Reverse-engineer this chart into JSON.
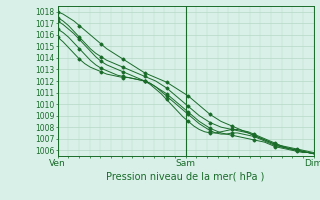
{
  "title": "",
  "xlabel": "Pression niveau de la mer( hPa )",
  "ylabel": "",
  "bg_color": "#d8f0e8",
  "grid_color": "#b8d8c8",
  "line_color": "#1a6b2a",
  "xlim": [
    0,
    48
  ],
  "ylim": [
    1005.5,
    1018.5
  ],
  "yticks": [
    1006,
    1007,
    1008,
    1009,
    1010,
    1011,
    1012,
    1013,
    1014,
    1015,
    1016,
    1017,
    1018
  ],
  "xtick_positions": [
    0,
    24,
    48
  ],
  "xtick_labels": [
    "Ven",
    "Sam",
    "Dim"
  ],
  "series": [
    [
      1018.0,
      1017.8,
      1017.5,
      1017.2,
      1016.8,
      1016.4,
      1016.0,
      1015.6,
      1015.2,
      1014.8,
      1014.5,
      1014.2,
      1013.9,
      1013.6,
      1013.3,
      1013.0,
      1012.7,
      1012.5,
      1012.3,
      1012.1,
      1011.9,
      1011.6,
      1011.3,
      1011.0,
      1010.7,
      1010.3,
      1009.9,
      1009.5,
      1009.1,
      1008.8,
      1008.5,
      1008.3,
      1008.1,
      1007.9,
      1007.7,
      1007.5,
      1007.3,
      1007.1,
      1006.9,
      1006.7,
      1006.5,
      1006.4,
      1006.3,
      1006.2,
      1006.1,
      1006.0,
      1005.9,
      1005.8
    ],
    [
      1017.2,
      1016.9,
      1016.5,
      1016.1,
      1015.6,
      1015.1,
      1014.6,
      1014.1,
      1013.7,
      1013.4,
      1013.2,
      1013.0,
      1012.8,
      1012.6,
      1012.4,
      1012.2,
      1012.0,
      1011.8,
      1011.5,
      1011.2,
      1010.9,
      1010.5,
      1010.1,
      1009.7,
      1009.3,
      1008.9,
      1008.5,
      1008.2,
      1007.9,
      1007.7,
      1007.5,
      1007.4,
      1007.3,
      1007.2,
      1007.1,
      1007.0,
      1006.9,
      1006.8,
      1006.7,
      1006.5,
      1006.3,
      1006.2,
      1006.1,
      1006.0,
      1005.9,
      1005.8,
      1005.8,
      1005.7
    ],
    [
      1016.5,
      1016.2,
      1015.8,
      1015.3,
      1014.8,
      1014.3,
      1013.8,
      1013.4,
      1013.1,
      1012.9,
      1012.7,
      1012.5,
      1012.4,
      1012.3,
      1012.2,
      1012.1,
      1012.0,
      1011.8,
      1011.5,
      1011.1,
      1010.7,
      1010.3,
      1009.9,
      1009.5,
      1009.1,
      1008.7,
      1008.3,
      1008.0,
      1007.7,
      1007.5,
      1007.4,
      1007.4,
      1007.5,
      1007.5,
      1007.4,
      1007.3,
      1007.2,
      1007.0,
      1006.8,
      1006.6,
      1006.4,
      1006.3,
      1006.2,
      1006.1,
      1006.0,
      1005.9,
      1005.8,
      1005.7
    ],
    [
      1015.8,
      1015.4,
      1014.9,
      1014.4,
      1013.9,
      1013.5,
      1013.2,
      1013.0,
      1012.8,
      1012.6,
      1012.5,
      1012.4,
      1012.3,
      1012.3,
      1012.2,
      1012.1,
      1012.0,
      1011.7,
      1011.3,
      1010.9,
      1010.4,
      1009.9,
      1009.4,
      1008.9,
      1008.5,
      1008.1,
      1007.8,
      1007.6,
      1007.5,
      1007.5,
      1007.6,
      1007.7,
      1007.8,
      1007.8,
      1007.7,
      1007.6,
      1007.4,
      1007.2,
      1007.0,
      1006.8,
      1006.6,
      1006.4,
      1006.2,
      1006.1,
      1006.0,
      1005.9,
      1005.8,
      1005.7
    ],
    [
      1017.5,
      1017.2,
      1016.8,
      1016.3,
      1015.8,
      1015.3,
      1014.8,
      1014.4,
      1014.1,
      1013.8,
      1013.6,
      1013.4,
      1013.2,
      1013.0,
      1012.8,
      1012.6,
      1012.4,
      1012.2,
      1012.0,
      1011.7,
      1011.4,
      1011.0,
      1010.6,
      1010.2,
      1009.8,
      1009.4,
      1009.0,
      1008.7,
      1008.4,
      1008.2,
      1008.0,
      1007.9,
      1007.8,
      1007.7,
      1007.6,
      1007.5,
      1007.3,
      1007.1,
      1006.9,
      1006.7,
      1006.5,
      1006.3,
      1006.2,
      1006.1,
      1006.0,
      1005.9,
      1005.8,
      1005.7
    ]
  ]
}
